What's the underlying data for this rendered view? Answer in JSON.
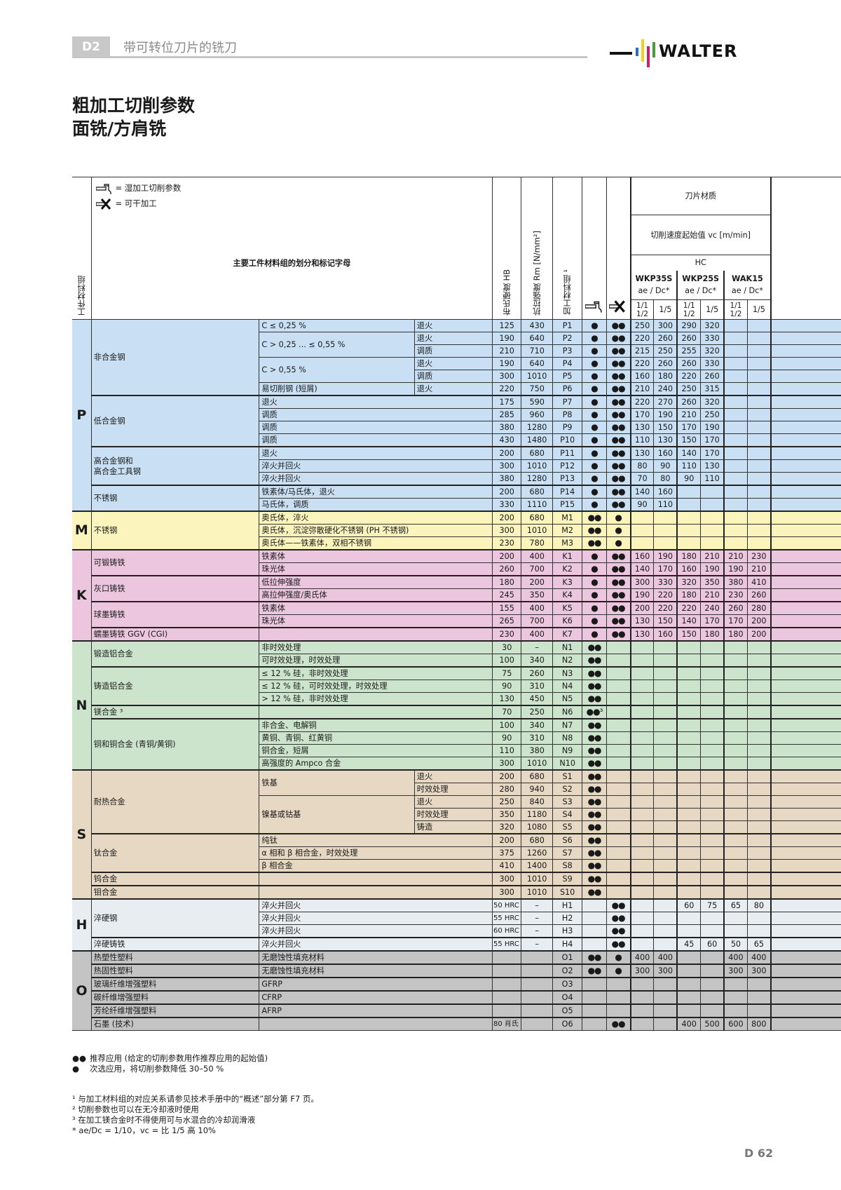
{
  "header": {
    "section_tab": "D2",
    "section_title": "带可转位刀片的铣刀",
    "brand": "WALTER",
    "brand_colors": [
      "#1e73be",
      "#f0d020",
      "#c81e6e",
      "#4a9a3a"
    ]
  },
  "page_title": {
    "line1": "粗加工切削参数",
    "line2": "面铣/方肩铣"
  },
  "table_header": {
    "legend_wet": "= 湿加工切削参数",
    "legend_dry": "= 可干加工",
    "group_col": "工件材料组",
    "main_col": "主要工件材料组的划分和标记字母",
    "hardness": "布氏硬度 HB",
    "tensile": "抗拉强度 Rm [N/mm²]",
    "machining_group": "加工材料组 ¹",
    "grade_title": "刀片材质",
    "vc_title": "切削速度起始值 vc [m/min]",
    "hc": "HC",
    "grades": [
      "WKP35S",
      "WKP25S",
      "WAK15"
    ],
    "ae_dc": "ae / Dc*",
    "sub_a": "1/1 1/2",
    "sub_b": "1/5"
  },
  "rows": [
    {
      "g": "P",
      "cat": "非合金钢",
      "sub": "C ≤ 0,25 %",
      "cond": "退火",
      "hb": "125",
      "rm": "430",
      "code": "P1",
      "wet": "●",
      "dry": "●●",
      "v": [
        "250",
        "300",
        "290",
        "320",
        "",
        ""
      ]
    },
    {
      "g": "P",
      "cat": "非合金钢",
      "sub": "C > 0,25 ... ≤ 0,55 %",
      "cond": "退火",
      "hb": "190",
      "rm": "640",
      "code": "P2",
      "wet": "●",
      "dry": "●●",
      "v": [
        "220",
        "260",
        "260",
        "330",
        "",
        ""
      ]
    },
    {
      "g": "P",
      "cat": "非合金钢",
      "sub": "C > 0,25 ... ≤ 0,55 %",
      "cond": "调质",
      "hb": "210",
      "rm": "710",
      "code": "P3",
      "wet": "●",
      "dry": "●●",
      "v": [
        "215",
        "250",
        "255",
        "320",
        "",
        ""
      ]
    },
    {
      "g": "P",
      "cat": "非合金钢",
      "sub": "C > 0,55 %",
      "cond": "退火",
      "hb": "190",
      "rm": "640",
      "code": "P4",
      "wet": "●",
      "dry": "●●",
      "v": [
        "220",
        "260",
        "260",
        "330",
        "",
        ""
      ]
    },
    {
      "g": "P",
      "cat": "非合金钢",
      "sub": "C > 0,55 %",
      "cond": "调质",
      "hb": "300",
      "rm": "1010",
      "code": "P5",
      "wet": "●",
      "dry": "●●",
      "v": [
        "160",
        "180",
        "220",
        "260",
        "",
        ""
      ]
    },
    {
      "g": "P",
      "cat": "非合金钢",
      "sub": "易切削钢 (短屑)",
      "cond": "退火",
      "hb": "220",
      "rm": "750",
      "code": "P6",
      "wet": "●",
      "dry": "●●",
      "v": [
        "210",
        "240",
        "250",
        "315",
        "",
        ""
      ]
    },
    {
      "g": "P",
      "cat": "低合金钢",
      "sub": "退火",
      "cond": "",
      "hb": "175",
      "rm": "590",
      "code": "P7",
      "wet": "●",
      "dry": "●●",
      "v": [
        "220",
        "270",
        "260",
        "320",
        "",
        ""
      ]
    },
    {
      "g": "P",
      "cat": "低合金钢",
      "sub": "调质",
      "cond": "",
      "hb": "285",
      "rm": "960",
      "code": "P8",
      "wet": "●",
      "dry": "●●",
      "v": [
        "170",
        "190",
        "210",
        "250",
        "",
        ""
      ]
    },
    {
      "g": "P",
      "cat": "低合金钢",
      "sub": "调质",
      "cond": "",
      "hb": "380",
      "rm": "1280",
      "code": "P9",
      "wet": "●",
      "dry": "●●",
      "v": [
        "130",
        "150",
        "170",
        "190",
        "",
        ""
      ]
    },
    {
      "g": "P",
      "cat": "低合金钢",
      "sub": "调质",
      "cond": "",
      "hb": "430",
      "rm": "1480",
      "code": "P10",
      "wet": "●",
      "dry": "●●",
      "v": [
        "110",
        "130",
        "150",
        "170",
        "",
        ""
      ]
    },
    {
      "g": "P",
      "cat": "高合金钢和\n高合金工具钢",
      "sub": "退火",
      "cond": "",
      "hb": "200",
      "rm": "680",
      "code": "P11",
      "wet": "●",
      "dry": "●●",
      "v": [
        "130",
        "160",
        "140",
        "170",
        "",
        ""
      ]
    },
    {
      "g": "P",
      "cat": "高合金钢和\n高合金工具钢",
      "sub": "淬火并回火",
      "cond": "",
      "hb": "300",
      "rm": "1010",
      "code": "P12",
      "wet": "●",
      "dry": "●●",
      "v": [
        "80",
        "90",
        "110",
        "130",
        "",
        ""
      ]
    },
    {
      "g": "P",
      "cat": "高合金钢和\n高合金工具钢",
      "sub": "淬火并回火",
      "cond": "",
      "hb": "380",
      "rm": "1280",
      "code": "P13",
      "wet": "●",
      "dry": "●●",
      "v": [
        "70",
        "80",
        "90",
        "110",
        "",
        ""
      ]
    },
    {
      "g": "P",
      "cat": "不锈钢",
      "sub": "铁素体/马氏体，退火",
      "cond": "",
      "hb": "200",
      "rm": "680",
      "code": "P14",
      "wet": "●",
      "dry": "●●",
      "v": [
        "140",
        "160",
        "",
        "",
        "",
        ""
      ]
    },
    {
      "g": "P",
      "cat": "不锈钢",
      "sub": "马氏体，调质",
      "cond": "",
      "hb": "330",
      "rm": "1110",
      "code": "P15",
      "wet": "●",
      "dry": "●●",
      "v": [
        "90",
        "110",
        "",
        "",
        "",
        ""
      ]
    },
    {
      "g": "M",
      "cat": "不锈钢",
      "sub": "奥氏体，淬火",
      "cond": "",
      "hb": "200",
      "rm": "680",
      "code": "M1",
      "wet": "●●",
      "dry": "●",
      "v": [
        "",
        "",
        "",
        "",
        "",
        ""
      ]
    },
    {
      "g": "M",
      "cat": "不锈钢",
      "sub": "奥氏体，沉淀弥散硬化不锈钢 (PH 不锈钢)",
      "cond": "",
      "hb": "300",
      "rm": "1010",
      "code": "M2",
      "wet": "●●",
      "dry": "●",
      "v": [
        "",
        "",
        "",
        "",
        "",
        ""
      ]
    },
    {
      "g": "M",
      "cat": "不锈钢",
      "sub": "奥氏体——铁素体，双相不锈钢",
      "cond": "",
      "hb": "230",
      "rm": "780",
      "code": "M3",
      "wet": "●●",
      "dry": "●",
      "v": [
        "",
        "",
        "",
        "",
        "",
        ""
      ]
    },
    {
      "g": "K",
      "cat": "可锻铸铁",
      "sub": "铁素体",
      "cond": "",
      "hb": "200",
      "rm": "400",
      "code": "K1",
      "wet": "●",
      "dry": "●●",
      "v": [
        "160",
        "190",
        "180",
        "210",
        "210",
        "230"
      ]
    },
    {
      "g": "K",
      "cat": "可锻铸铁",
      "sub": "珠光体",
      "cond": "",
      "hb": "260",
      "rm": "700",
      "code": "K2",
      "wet": "●",
      "dry": "●●",
      "v": [
        "140",
        "170",
        "160",
        "190",
        "190",
        "210"
      ]
    },
    {
      "g": "K",
      "cat": "灰口铸铁",
      "sub": "低拉伸强度",
      "cond": "",
      "hb": "180",
      "rm": "200",
      "code": "K3",
      "wet": "●",
      "dry": "●●",
      "v": [
        "300",
        "330",
        "320",
        "350",
        "380",
        "410"
      ]
    },
    {
      "g": "K",
      "cat": "灰口铸铁",
      "sub": "高拉伸强度/奥氏体",
      "cond": "",
      "hb": "245",
      "rm": "350",
      "code": "K4",
      "wet": "●",
      "dry": "●●",
      "v": [
        "190",
        "220",
        "180",
        "210",
        "230",
        "260"
      ]
    },
    {
      "g": "K",
      "cat": "球墨铸铁",
      "sub": "铁素体",
      "cond": "",
      "hb": "155",
      "rm": "400",
      "code": "K5",
      "wet": "●",
      "dry": "●●",
      "v": [
        "200",
        "220",
        "220",
        "240",
        "260",
        "280"
      ]
    },
    {
      "g": "K",
      "cat": "球墨铸铁",
      "sub": "珠光体",
      "cond": "",
      "hb": "265",
      "rm": "700",
      "code": "K6",
      "wet": "●",
      "dry": "●●",
      "v": [
        "130",
        "150",
        "140",
        "170",
        "170",
        "200"
      ]
    },
    {
      "g": "K",
      "cat": "蠕墨铸铁 GGV (CGI)",
      "sub": "",
      "cond": "",
      "hb": "230",
      "rm": "400",
      "code": "K7",
      "wet": "●",
      "dry": "●●",
      "v": [
        "130",
        "160",
        "150",
        "180",
        "180",
        "200"
      ]
    },
    {
      "g": "N",
      "cat": "锻造铝合金",
      "sub": "非时效处理",
      "cond": "",
      "hb": "30",
      "rm": "–",
      "code": "N1",
      "wet": "●●",
      "dry": "",
      "v": [
        "",
        "",
        "",
        "",
        "",
        ""
      ]
    },
    {
      "g": "N",
      "cat": "锻造铝合金",
      "sub": "可时效处理，时效处理",
      "cond": "",
      "hb": "100",
      "rm": "340",
      "code": "N2",
      "wet": "●●",
      "dry": "",
      "v": [
        "",
        "",
        "",
        "",
        "",
        ""
      ]
    },
    {
      "g": "N",
      "cat": "铸造铝合金",
      "sub": "≤ 12 % 硅，非时效处理",
      "cond": "",
      "hb": "75",
      "rm": "260",
      "code": "N3",
      "wet": "●●",
      "dry": "",
      "v": [
        "",
        "",
        "",
        "",
        "",
        ""
      ]
    },
    {
      "g": "N",
      "cat": "铸造铝合金",
      "sub": "≤ 12 % 硅，可时效处理，时效处理",
      "cond": "",
      "hb": "90",
      "rm": "310",
      "code": "N4",
      "wet": "●●",
      "dry": "",
      "v": [
        "",
        "",
        "",
        "",
        "",
        ""
      ]
    },
    {
      "g": "N",
      "cat": "铸造铝合金",
      "sub": "> 12 % 硅，非时效处理",
      "cond": "",
      "hb": "130",
      "rm": "450",
      "code": "N5",
      "wet": "●●",
      "dry": "",
      "v": [
        "",
        "",
        "",
        "",
        "",
        ""
      ]
    },
    {
      "g": "N",
      "cat": "镁合金 ³",
      "sub": "",
      "cond": "",
      "hb": "70",
      "rm": "250",
      "code": "N6",
      "wet": "●●³",
      "dry": "",
      "v": [
        "",
        "",
        "",
        "",
        "",
        ""
      ]
    },
    {
      "g": "N",
      "cat": "铜和铜合金 (青铜/黄铜)",
      "sub": "非合金、电解铜",
      "cond": "",
      "hb": "100",
      "rm": "340",
      "code": "N7",
      "wet": "●●",
      "dry": "",
      "v": [
        "",
        "",
        "",
        "",
        "",
        ""
      ]
    },
    {
      "g": "N",
      "cat": "铜和铜合金 (青铜/黄铜)",
      "sub": "黄铜、青铜、红黄铜",
      "cond": "",
      "hb": "90",
      "rm": "310",
      "code": "N8",
      "wet": "●●",
      "dry": "",
      "v": [
        "",
        "",
        "",
        "",
        "",
        ""
      ]
    },
    {
      "g": "N",
      "cat": "铜和铜合金 (青铜/黄铜)",
      "sub": "铜合金，短屑",
      "cond": "",
      "hb": "110",
      "rm": "380",
      "code": "N9",
      "wet": "●●",
      "dry": "",
      "v": [
        "",
        "",
        "",
        "",
        "",
        ""
      ]
    },
    {
      "g": "N",
      "cat": "铜和铜合金 (青铜/黄铜)",
      "sub": "高强度的 Ampco 合金",
      "cond": "",
      "hb": "300",
      "rm": "1010",
      "code": "N10",
      "wet": "●●",
      "dry": "",
      "v": [
        "",
        "",
        "",
        "",
        "",
        ""
      ]
    },
    {
      "g": "S",
      "cat": "耐热合金",
      "sub": "铁基",
      "cond": "退火",
      "hb": "200",
      "rm": "680",
      "code": "S1",
      "wet": "●●",
      "dry": "",
      "v": [
        "",
        "",
        "",
        "",
        "",
        ""
      ]
    },
    {
      "g": "S",
      "cat": "耐热合金",
      "sub": "铁基",
      "cond": "时效处理",
      "hb": "280",
      "rm": "940",
      "code": "S2",
      "wet": "●●",
      "dry": "",
      "v": [
        "",
        "",
        "",
        "",
        "",
        ""
      ]
    },
    {
      "g": "S",
      "cat": "耐热合金",
      "sub": "镍基或钴基",
      "cond": "退火",
      "hb": "250",
      "rm": "840",
      "code": "S3",
      "wet": "●●",
      "dry": "",
      "v": [
        "",
        "",
        "",
        "",
        "",
        ""
      ]
    },
    {
      "g": "S",
      "cat": "耐热合金",
      "sub": "镍基或钴基",
      "cond": "时效处理",
      "hb": "350",
      "rm": "1180",
      "code": "S4",
      "wet": "●●",
      "dry": "",
      "v": [
        "",
        "",
        "",
        "",
        "",
        ""
      ]
    },
    {
      "g": "S",
      "cat": "耐热合金",
      "sub": "镍基或钴基",
      "cond": "铸造",
      "hb": "320",
      "rm": "1080",
      "code": "S5",
      "wet": "●●",
      "dry": "",
      "v": [
        "",
        "",
        "",
        "",
        "",
        ""
      ]
    },
    {
      "g": "S",
      "cat": "钛合金",
      "sub": "纯钛",
      "cond": "",
      "hb": "200",
      "rm": "680",
      "code": "S6",
      "wet": "●●",
      "dry": "",
      "v": [
        "",
        "",
        "",
        "",
        "",
        ""
      ]
    },
    {
      "g": "S",
      "cat": "钛合金",
      "sub": "α 相和 β 相合金，时效处理",
      "cond": "",
      "hb": "375",
      "rm": "1260",
      "code": "S7",
      "wet": "●●",
      "dry": "",
      "v": [
        "",
        "",
        "",
        "",
        "",
        ""
      ]
    },
    {
      "g": "S",
      "cat": "钛合金",
      "sub": "β 相合金",
      "cond": "",
      "hb": "410",
      "rm": "1400",
      "code": "S8",
      "wet": "●●",
      "dry": "",
      "v": [
        "",
        "",
        "",
        "",
        "",
        ""
      ]
    },
    {
      "g": "S",
      "cat": "钨合金",
      "sub": "",
      "cond": "",
      "hb": "300",
      "rm": "1010",
      "code": "S9",
      "wet": "●●",
      "dry": "",
      "v": [
        "",
        "",
        "",
        "",
        "",
        ""
      ]
    },
    {
      "g": "S",
      "cat": "钼合金",
      "sub": "",
      "cond": "",
      "hb": "300",
      "rm": "1010",
      "code": "S10",
      "wet": "●●",
      "dry": "",
      "v": [
        "",
        "",
        "",
        "",
        "",
        ""
      ]
    },
    {
      "g": "H",
      "cat": "淬硬钢",
      "sub": "淬火并回火",
      "cond": "",
      "hb": "50 HRC",
      "rm": "–",
      "code": "H1",
      "wet": "",
      "dry": "●●",
      "v": [
        "",
        "",
        "60",
        "75",
        "65",
        "80"
      ]
    },
    {
      "g": "H",
      "cat": "淬硬钢",
      "sub": "淬火并回火",
      "cond": "",
      "hb": "55 HRC",
      "rm": "–",
      "code": "H2",
      "wet": "",
      "dry": "●●",
      "v": [
        "",
        "",
        "",
        "",
        "",
        ""
      ]
    },
    {
      "g": "H",
      "cat": "淬硬钢",
      "sub": "淬火并回火",
      "cond": "",
      "hb": "60 HRC",
      "rm": "–",
      "code": "H3",
      "wet": "",
      "dry": "●●",
      "v": [
        "",
        "",
        "",
        "",
        "",
        ""
      ]
    },
    {
      "g": "H",
      "cat": "淬硬铸铁",
      "sub": "淬火并回火",
      "cond": "",
      "hb": "55 HRC",
      "rm": "–",
      "code": "H4",
      "wet": "",
      "dry": "●●",
      "v": [
        "",
        "",
        "45",
        "60",
        "50",
        "65"
      ]
    },
    {
      "g": "O",
      "cat": "热塑性塑料",
      "sub": "无磨蚀性填充材料",
      "cond": "",
      "hb": "",
      "rm": "",
      "code": "O1",
      "wet": "●●",
      "dry": "●",
      "v": [
        "400",
        "400",
        "",
        "",
        "400",
        "400"
      ]
    },
    {
      "g": "O",
      "cat": "热固性塑料",
      "sub": "无磨蚀性填充材料",
      "cond": "",
      "hb": "",
      "rm": "",
      "code": "O2",
      "wet": "●●",
      "dry": "●",
      "v": [
        "300",
        "300",
        "",
        "",
        "300",
        "300"
      ]
    },
    {
      "g": "O",
      "cat": "玻璃纤维增强塑料",
      "sub": "GFRP",
      "cond": "",
      "hb": "",
      "rm": "",
      "code": "O3",
      "wet": "",
      "dry": "",
      "v": [
        "",
        "",
        "",
        "",
        "",
        ""
      ]
    },
    {
      "g": "O",
      "cat": "碳纤维增强塑料",
      "sub": "CFRP",
      "cond": "",
      "hb": "",
      "rm": "",
      "code": "O4",
      "wet": "",
      "dry": "",
      "v": [
        "",
        "",
        "",
        "",
        "",
        ""
      ]
    },
    {
      "g": "O",
      "cat": "芳纶纤维增强塑料",
      "sub": "AFRP",
      "cond": "",
      "hb": "",
      "rm": "",
      "code": "O5",
      "wet": "",
      "dry": "",
      "v": [
        "",
        "",
        "",
        "",
        "",
        ""
      ]
    },
    {
      "g": "O",
      "cat": "石墨 (技术)",
      "sub": "",
      "cond": "",
      "hb": "80 肖氏",
      "rm": "",
      "code": "O6",
      "wet": "",
      "dry": "●●",
      "v": [
        "",
        "",
        "400",
        "500",
        "600",
        "800"
      ]
    }
  ],
  "legend": {
    "double_dot": "●●",
    "double_dot_text": "推荐应用 (给定的切削参数用作推荐应用的起始值)",
    "single_dot": "●",
    "single_dot_text": "次选应用，将切削参数降低 30–50 %"
  },
  "notes": [
    "¹ 与加工材料组的对应关系请参见技术手册中的“概述”部分第 F7 页。",
    "² 切削参数也可以在无冷却液时使用",
    "³ 在加工镁合金时不得使用可与水混合的冷却润滑液",
    "* ae/Dc = 1/10，vc = 比 1/5 高 10%"
  ],
  "page_number": "D 62"
}
